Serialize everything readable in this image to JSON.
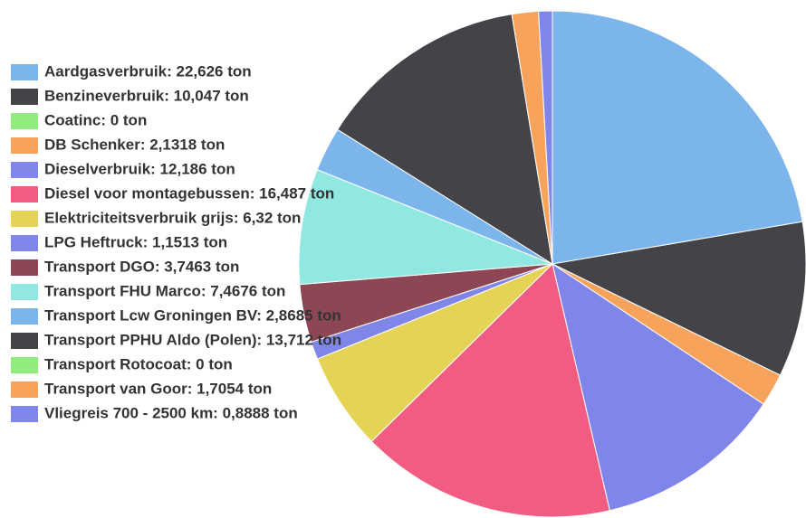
{
  "chart_data": {
    "type": "pie",
    "values": [
      22.626,
      10.047,
      0,
      2.1318,
      12.186,
      16.487,
      6.32,
      1.1513,
      3.7463,
      7.4676,
      2.8685,
      13.712,
      0,
      1.7054,
      0.8888
    ],
    "value_labels": [
      "Aardgasverbruik: 22,626 ton",
      "Benzineverbruik: 10,047 ton",
      "Coatinc: 0 ton",
      "DB Schenker: 2,1318 ton",
      "Dieselverbruik: 12,186 ton",
      "Diesel voor montagebussen: 16,487 ton",
      "Elektriciteitsverbruik grijs: 6,32 ton",
      "LPG Heftruck: 1,1513 ton",
      "Transport DGO: 3,7463 ton",
      "Transport FHU Marco: 7,4676 ton",
      "Transport Lcw Groningen BV: 2,8685 ton",
      "Transport PPHU Aldo (Polen): 13,712 ton",
      "Transport Rotocoat: 0 ton",
      "Transport van Goor: 1,7054 ton",
      "Vliegreis 700 - 2500 km: 0,8888 ton"
    ],
    "colors": [
      "#7cb5ec",
      "#434348",
      "#90ed7d",
      "#f7a35c",
      "#8085e9",
      "#f15c80",
      "#e4d354",
      "#8085e8",
      "#8d4653",
      "#91e8e1",
      "#7cb5ec",
      "#434348",
      "#90ed7d",
      "#f7a35c",
      "#8085e9"
    ],
    "legend": "left"
  }
}
